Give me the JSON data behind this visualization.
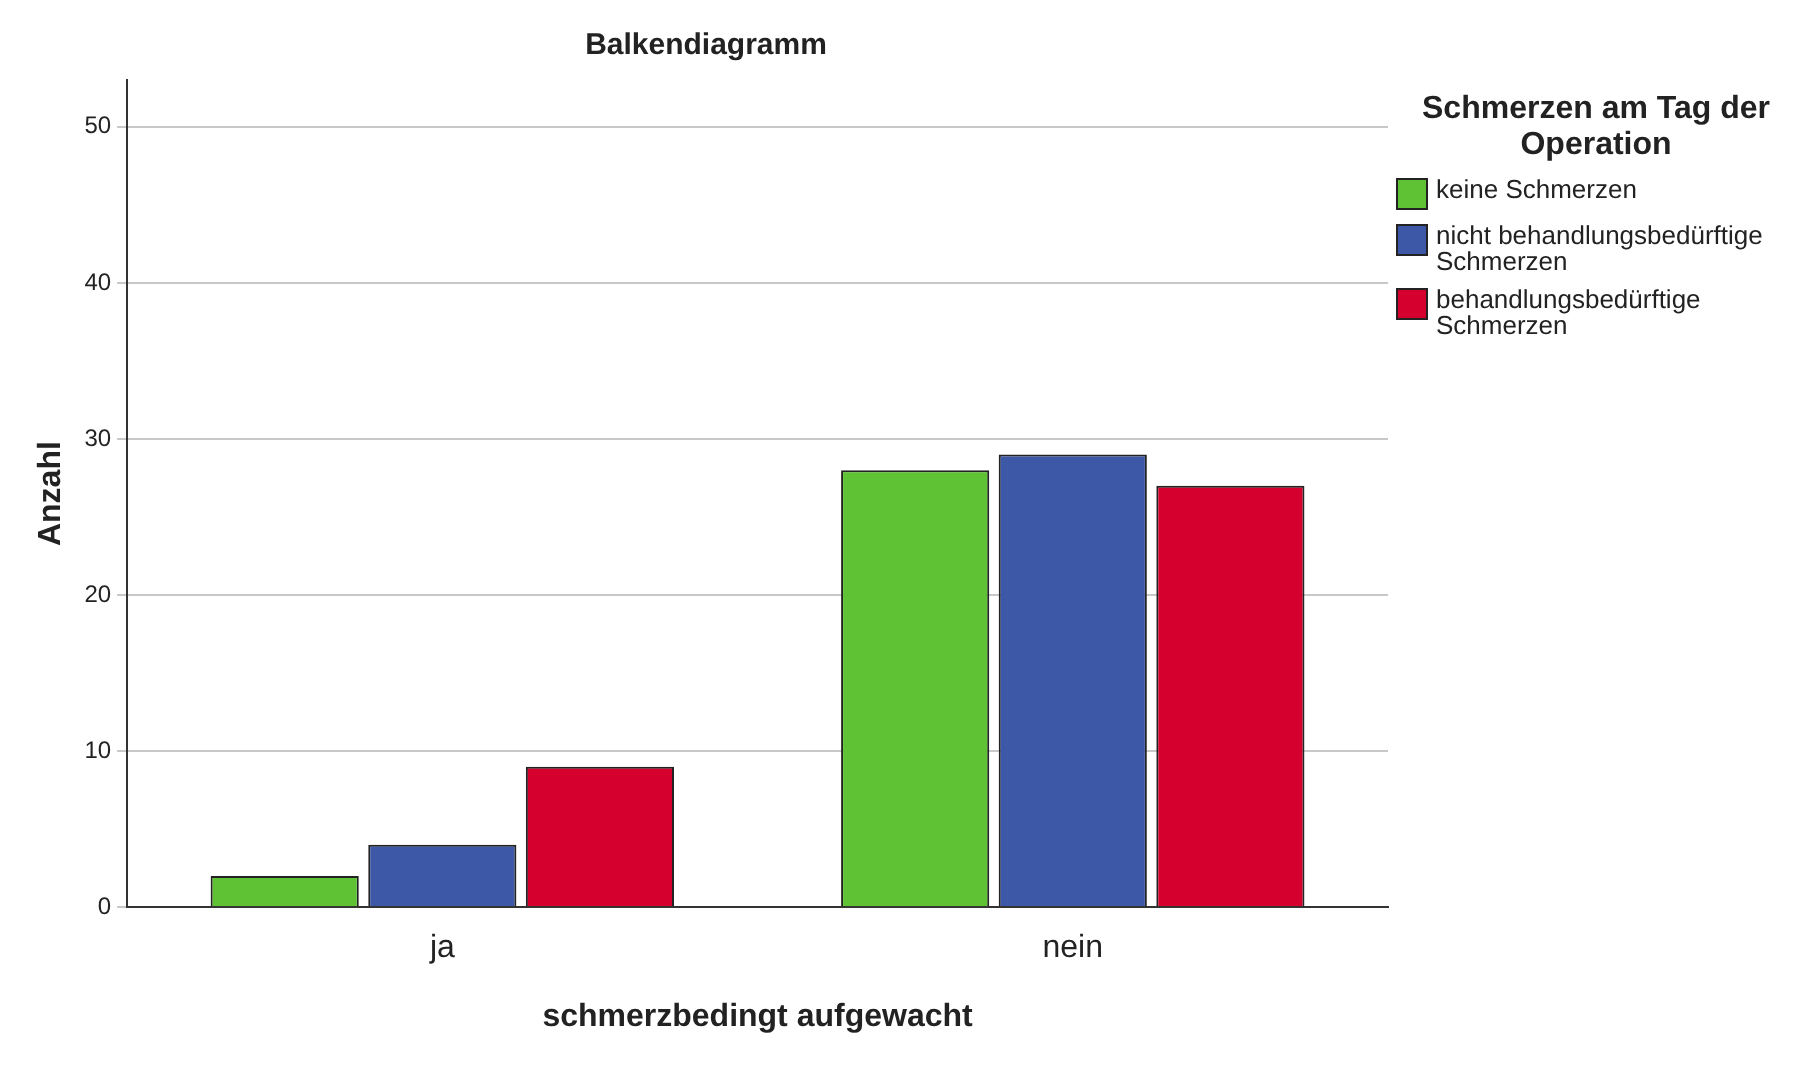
{
  "chart_data": {
    "type": "bar",
    "title": "Balkendiagramm",
    "xlabel": "schmerzbedingt aufgewacht",
    "ylabel": "Anzahl",
    "legend_title": "Schmerzen am Tag der Operation",
    "categories": [
      "ja",
      "nein"
    ],
    "series": [
      {
        "name": "keine Schmerzen",
        "color": "#5ec234",
        "values": [
          2,
          28
        ]
      },
      {
        "name": "nicht behandlungsbedürftige Schmerzen",
        "color": "#3e58a8",
        "values": [
          4,
          29
        ]
      },
      {
        "name": "behandlungsbedürftige Schmerzen",
        "color": "#d6002e",
        "values": [
          9,
          27
        ]
      }
    ],
    "ylim": [
      0,
      53
    ],
    "yticks": [
      0,
      10,
      20,
      30,
      40,
      50
    ],
    "grid": "y",
    "legend": "top right"
  }
}
